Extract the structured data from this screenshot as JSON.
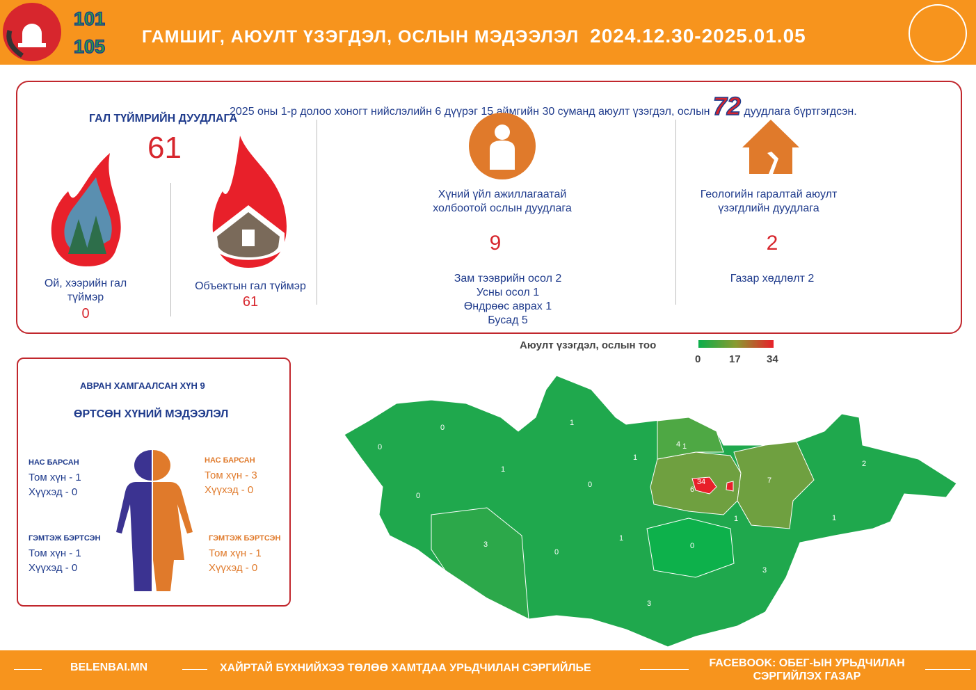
{
  "header": {
    "hotline_1": "101",
    "hotline_2": "105",
    "title": "ГАМШИГ, АЮУЛТ ҮЗЭГДЭЛ, ОСЛЫН МЭДЭЭЛЭЛ",
    "date_range": "2024.12.30-2025.01.05",
    "brand_color": "#f7941d"
  },
  "summary": {
    "text_before": "2025 оны 1-р долоо хоногт нийслэлийн 6 дүүрэг 15 аймгийн 30 суманд аюулт үзэгдэл, ослын",
    "total": "72",
    "text_after": "дуудлага бүртгэгдсэн."
  },
  "fire": {
    "heading": "ГАЛ ТҮЙМРИЙН ДУУДЛАГА",
    "total": "61",
    "forest_label": "Ой, хээрийн гал түймэр",
    "forest_value": "0",
    "object_label": "Объектын гал түймэр",
    "object_value": "61"
  },
  "human": {
    "label": "Хүний үйл ажиллагаатай холбоотой ослын дуудлага",
    "value": "9",
    "items": [
      "Зам тээврийн осол 2",
      "Усны осол 1",
      "Өндрөөс аврах 1",
      "Бусад 5"
    ]
  },
  "geo": {
    "label": "Геологийн гаралтай аюулт үзэгдлийн дуудлага",
    "value": "2",
    "items": [
      "Газар хөдлөлт 2"
    ]
  },
  "victims": {
    "rescued": "АВРАН ХАМГААЛСАН ХҮН 9",
    "title": "ӨРТСӨН ХҮНИЙ МЭДЭЭЛЭЛ",
    "male": {
      "dead_title": "НАС БАРСАН",
      "dead_adult": "Том хүн - 1",
      "dead_child": "Хүүхэд - 0",
      "injured_title": "ГЭМТЭЖ БЭРТСЭН",
      "injured_adult": "Том хүн - 1",
      "injured_child": "Хүүхэд - 0",
      "color": "#3b3391"
    },
    "female": {
      "dead_title": "НАС БАРСАН",
      "dead_adult": "Том хүн - 3",
      "dead_child": "Хүүхэд - 0",
      "injured_title": "ГЭМТЭЖ БЭРТСЭН",
      "injured_adult": "Том хүн - 1",
      "injured_child": "Хүүхэд - 0",
      "color": "#e07a2b"
    }
  },
  "map": {
    "legend_title": "Аюулт үзэгдэл, ослын тоо",
    "legend_ticks": [
      "0",
      "17",
      "34"
    ],
    "colors": {
      "low": "#0aae4a",
      "mid": "#6fa040",
      "high": "#e8202a"
    },
    "region_values": [
      "0",
      "0",
      "0",
      "1",
      "1",
      "0",
      "1",
      "4",
      "1",
      "34",
      "6",
      "7",
      "2",
      "1",
      "1",
      "3",
      "0",
      "1",
      "0",
      "3",
      "3"
    ]
  },
  "footer": {
    "site": "BELENBAI.MN",
    "slogan": "ХАЙРТАЙ БҮХНИЙХЭЭ ТӨЛӨӨ ХАМТДАА УРЬДЧИЛАН СЭРГИЙЛЬЕ",
    "facebook_1": "FACEBOOK: ОБЕГ-ЫН УРЬДЧИЛАН",
    "facebook_2": "СЭРГИЙЛЭХ ГАЗАР"
  }
}
